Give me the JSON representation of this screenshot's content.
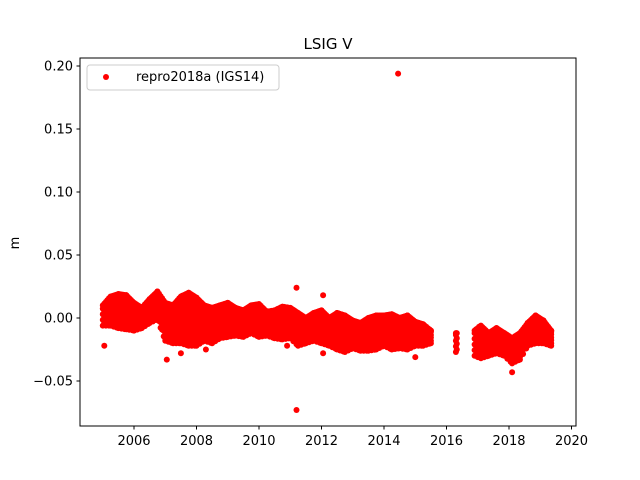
{
  "chart_data": {
    "type": "scatter",
    "title": "LSIG V",
    "xlabel": "",
    "ylabel": "m",
    "xlim": [
      2004.4,
      2020.15
    ],
    "ylim": [
      -0.087,
      0.207
    ],
    "xticks": [
      2006,
      2008,
      2010,
      2012,
      2014,
      2016,
      2018,
      2020
    ],
    "xtick_labels": [
      "2006",
      "2008",
      "2010",
      "2012",
      "2014",
      "2016",
      "2018",
      "2020"
    ],
    "yticks": [
      -0.05,
      0.0,
      0.05,
      0.1,
      0.15,
      0.2
    ],
    "ytick_labels": [
      "−0.05",
      "0.00",
      "0.05",
      "0.10",
      "0.15",
      "0.20"
    ],
    "grid": false,
    "legend": {
      "placement": "top-left",
      "entries": [
        "repro2018a (IGS14)"
      ]
    },
    "series": [
      {
        "name": "repro2018a (IGS14)",
        "color": "#ff0000",
        "marker": "circle",
        "envelope_columns": [
          "year",
          "y_min",
          "y_max"
        ],
        "envelope": [
          [
            2005.0,
            -0.006,
            0.01
          ],
          [
            2005.25,
            -0.006,
            0.017
          ],
          [
            2005.5,
            -0.008,
            0.019
          ],
          [
            2005.75,
            -0.009,
            0.018
          ],
          [
            2006.0,
            -0.01,
            0.012
          ],
          [
            2006.25,
            -0.008,
            0.008
          ],
          [
            2006.5,
            -0.004,
            0.015
          ],
          [
            2006.75,
            -0.001,
            0.021
          ],
          [
            2007.0,
            -0.018,
            0.012
          ],
          [
            2007.25,
            -0.02,
            0.01
          ],
          [
            2007.5,
            -0.02,
            0.017
          ],
          [
            2007.75,
            -0.022,
            0.02
          ],
          [
            2008.0,
            -0.022,
            0.016
          ],
          [
            2008.25,
            -0.018,
            0.01
          ],
          [
            2008.5,
            -0.02,
            0.008
          ],
          [
            2008.75,
            -0.016,
            0.01
          ],
          [
            2009.0,
            -0.015,
            0.012
          ],
          [
            2009.25,
            -0.014,
            0.008
          ],
          [
            2009.5,
            -0.015,
            0.006
          ],
          [
            2009.75,
            -0.012,
            0.01
          ],
          [
            2010.0,
            -0.015,
            0.011
          ],
          [
            2010.25,
            -0.014,
            0.005
          ],
          [
            2010.5,
            -0.016,
            0.006
          ],
          [
            2010.75,
            -0.017,
            0.009
          ],
          [
            2011.0,
            -0.016,
            0.008
          ],
          [
            2011.25,
            -0.022,
            0.004
          ],
          [
            2011.5,
            -0.02,
            0.0
          ],
          [
            2011.75,
            -0.018,
            0.004
          ],
          [
            2012.0,
            -0.02,
            0.006
          ],
          [
            2012.25,
            -0.022,
            0.0
          ],
          [
            2012.5,
            -0.025,
            0.004
          ],
          [
            2012.75,
            -0.027,
            0.002
          ],
          [
            2013.0,
            -0.024,
            -0.002
          ],
          [
            2013.25,
            -0.026,
            -0.004
          ],
          [
            2013.5,
            -0.026,
            0.0
          ],
          [
            2013.75,
            -0.025,
            0.002
          ],
          [
            2014.0,
            -0.022,
            0.002
          ],
          [
            2014.25,
            -0.025,
            0.003
          ],
          [
            2014.5,
            -0.024,
            0.0
          ],
          [
            2014.75,
            -0.025,
            0.002
          ],
          [
            2015.0,
            -0.022,
            -0.003
          ],
          [
            2015.25,
            -0.022,
            -0.005
          ],
          [
            2015.5,
            -0.02,
            -0.01
          ],
          [
            2016.3,
            -0.027,
            -0.012
          ],
          [
            2016.9,
            -0.03,
            -0.01
          ],
          [
            2017.1,
            -0.032,
            -0.006
          ],
          [
            2017.35,
            -0.03,
            -0.012
          ],
          [
            2017.6,
            -0.028,
            -0.008
          ],
          [
            2017.85,
            -0.03,
            -0.012
          ],
          [
            2018.1,
            -0.036,
            -0.016
          ],
          [
            2018.35,
            -0.033,
            -0.012
          ],
          [
            2018.6,
            -0.022,
            -0.004
          ],
          [
            2018.85,
            -0.02,
            0.002
          ],
          [
            2019.1,
            -0.02,
            -0.002
          ],
          [
            2019.35,
            -0.022,
            -0.01
          ]
        ],
        "points": [
          [
            2014.45,
            0.194
          ],
          [
            2011.2,
            -0.073
          ],
          [
            2011.2,
            0.024
          ],
          [
            2012.05,
            0.018
          ],
          [
            2005.05,
            -0.022
          ],
          [
            2007.05,
            -0.033
          ],
          [
            2007.5,
            -0.028
          ],
          [
            2012.05,
            -0.028
          ],
          [
            2015.0,
            -0.031
          ],
          [
            2018.1,
            -0.043
          ],
          [
            2008.3,
            -0.025
          ],
          [
            2010.9,
            -0.022
          ]
        ]
      }
    ]
  }
}
